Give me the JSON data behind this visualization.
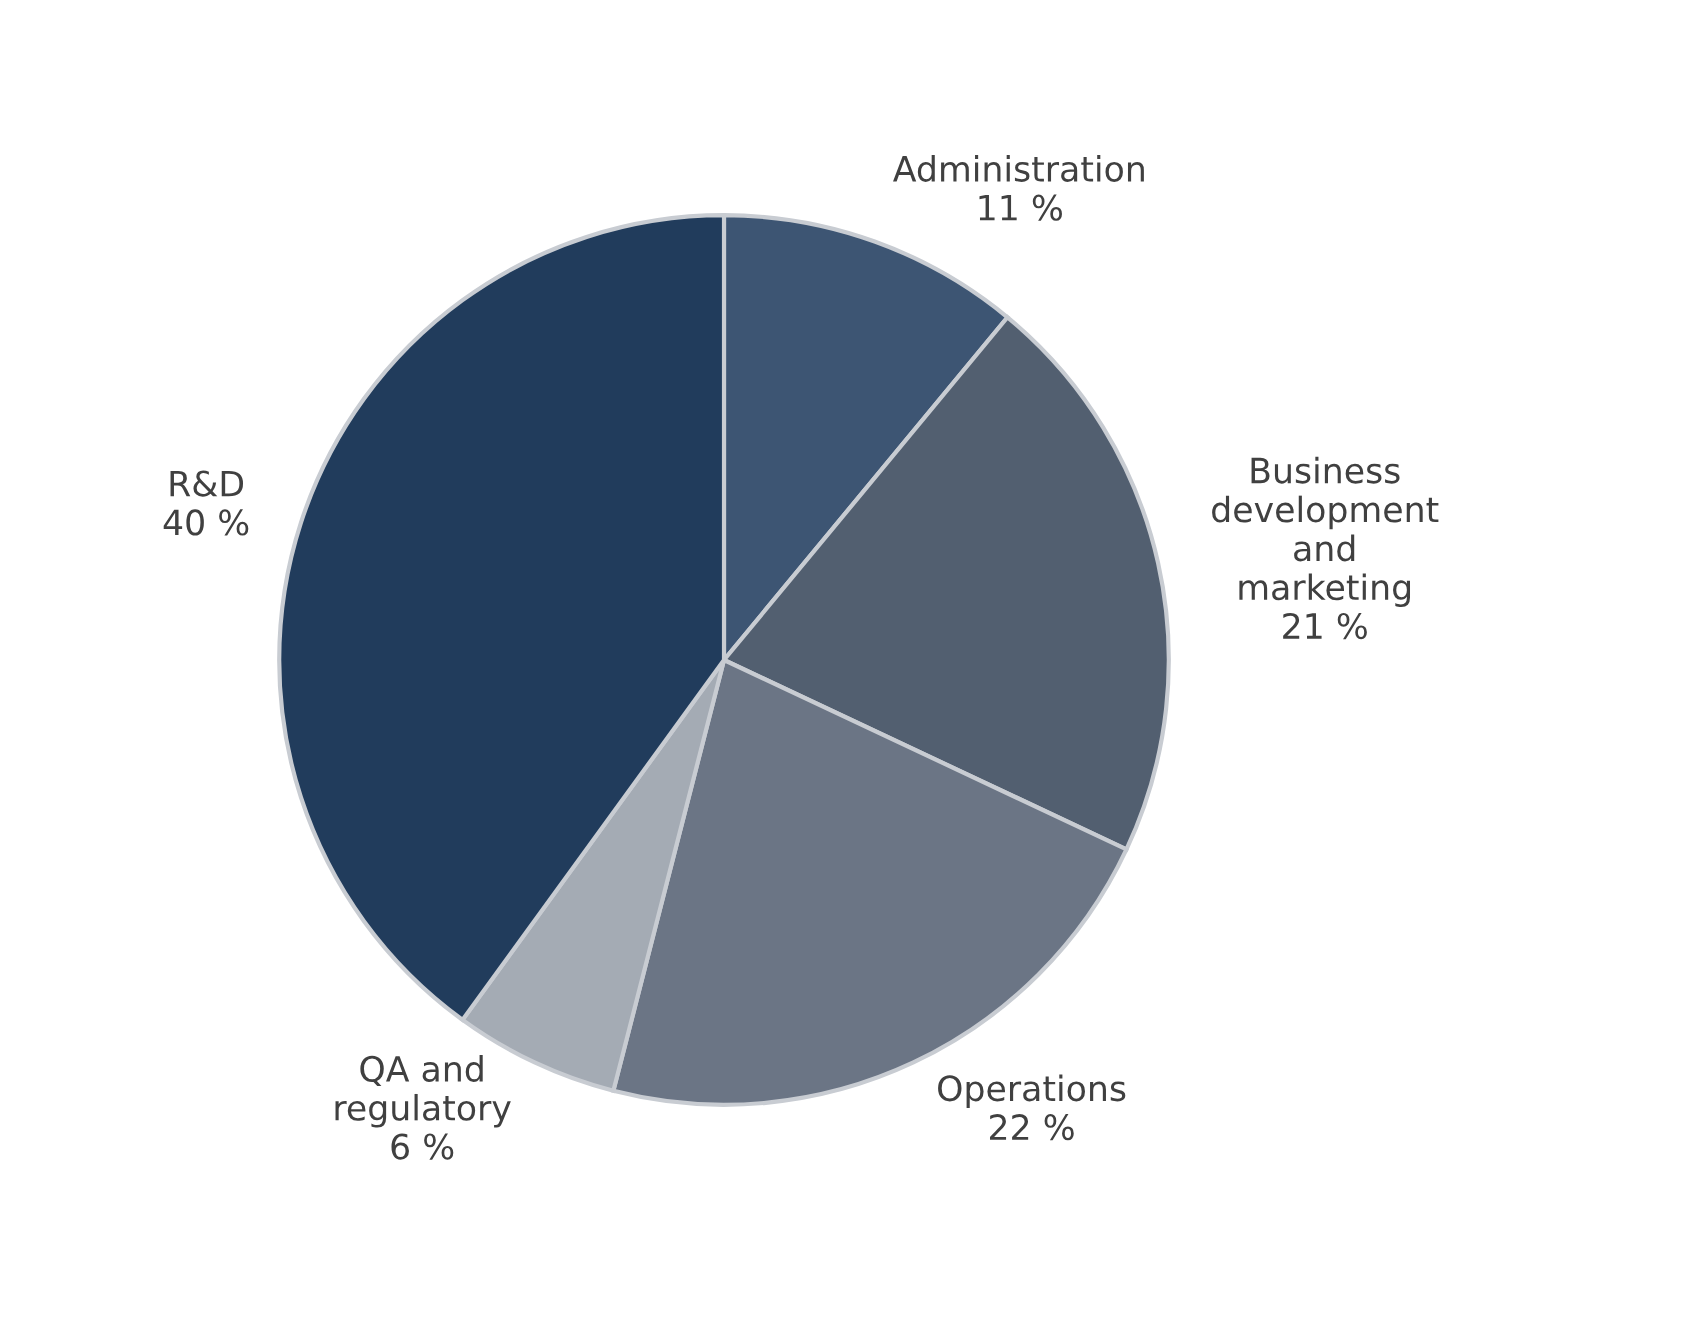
{
  "chart_data": {
    "type": "pie",
    "categories": [
      "Administration",
      "Business\ndevelopment\nand\nmarketing",
      "Operations",
      "QA and\nregulatory",
      "R&D"
    ],
    "values": [
      11,
      21,
      22,
      6,
      40
    ],
    "value_labels": [
      "11 %",
      "21 %",
      "22 %",
      "6 %",
      "40 %"
    ],
    "colors": [
      "#3d5573",
      "#525f70",
      "#6b7585",
      "#a4abb4",
      "#213c5c"
    ],
    "legend": false
  }
}
